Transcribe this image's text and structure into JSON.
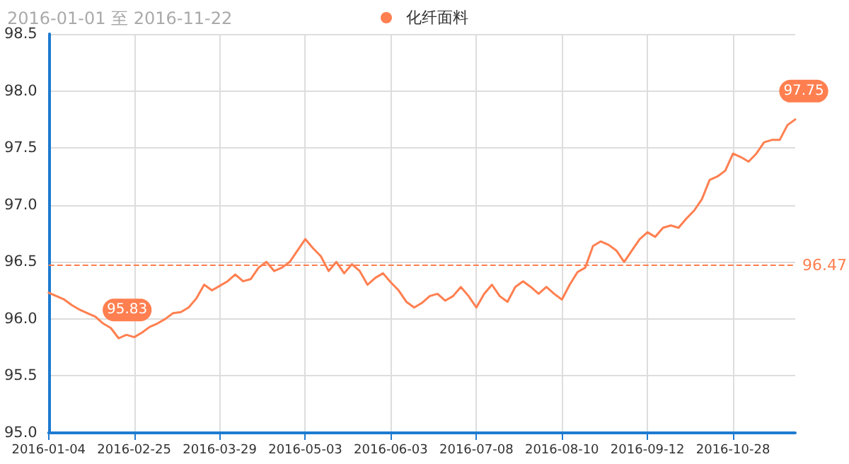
{
  "chart_data": {
    "type": "line",
    "title": "2016-01-01 至 2016-11-22",
    "categories": [
      "2016-01-04",
      null,
      null,
      null,
      null,
      null,
      null,
      null,
      null,
      null,
      null,
      "2016-02-25",
      null,
      null,
      null,
      null,
      null,
      null,
      null,
      null,
      null,
      null,
      "2016-03-29",
      null,
      null,
      null,
      null,
      null,
      null,
      null,
      null,
      null,
      null,
      "2016-05-03",
      null,
      null,
      null,
      null,
      null,
      null,
      null,
      null,
      null,
      null,
      "2016-06-03",
      null,
      null,
      null,
      null,
      null,
      null,
      null,
      null,
      null,
      null,
      "2016-07-08",
      null,
      null,
      null,
      null,
      null,
      null,
      null,
      null,
      null,
      null,
      "2016-08-10",
      null,
      null,
      null,
      null,
      null,
      null,
      null,
      null,
      null,
      null,
      "2016-09-12",
      null,
      null,
      null,
      null,
      null,
      null,
      null,
      null,
      null,
      null,
      "2016-10-28",
      null,
      null,
      null,
      null,
      null,
      null,
      null,
      null
    ],
    "series": [
      {
        "name": "化纤面料",
        "color": "#ff7f50",
        "values": [
          96.23,
          96.2,
          96.17,
          96.12,
          96.08,
          96.05,
          96.02,
          95.96,
          95.92,
          95.83,
          95.86,
          95.84,
          95.88,
          95.93,
          95.96,
          96.0,
          96.05,
          96.06,
          96.1,
          96.18,
          96.3,
          96.25,
          96.29,
          96.33,
          96.39,
          96.33,
          96.35,
          96.45,
          96.5,
          96.42,
          96.45,
          96.5,
          96.6,
          96.7,
          96.62,
          96.55,
          96.42,
          96.5,
          96.4,
          96.48,
          96.42,
          96.3,
          96.36,
          96.4,
          96.32,
          96.25,
          96.15,
          96.1,
          96.14,
          96.2,
          96.22,
          96.16,
          96.2,
          96.28,
          96.2,
          96.1,
          96.22,
          96.3,
          96.2,
          96.15,
          96.28,
          96.33,
          96.28,
          96.22,
          96.28,
          96.22,
          96.17,
          96.3,
          96.41,
          96.45,
          96.64,
          96.68,
          96.65,
          96.6,
          96.5,
          96.6,
          96.7,
          96.76,
          96.72,
          96.8,
          96.82,
          96.8,
          96.88,
          96.95,
          97.05,
          97.22,
          97.25,
          97.3,
          97.45,
          97.42,
          97.38,
          97.45,
          97.55,
          97.57,
          97.57,
          97.7,
          97.75
        ],
        "value_labels": [
          null,
          null,
          null,
          null,
          null,
          null,
          null,
          null,
          null,
          "95.83",
          null,
          null,
          null,
          null,
          null,
          null,
          null,
          null,
          null,
          null,
          null,
          null,
          null,
          null,
          null,
          null,
          null,
          null,
          null,
          null,
          null,
          null,
          null,
          null,
          null,
          null,
          null,
          null,
          null,
          null,
          null,
          null,
          null,
          null,
          null,
          null,
          null,
          null,
          null,
          null,
          null,
          null,
          null,
          null,
          null,
          null,
          null,
          null,
          null,
          null,
          null,
          null,
          null,
          null,
          null,
          null,
          null,
          null,
          null,
          null,
          null,
          null,
          null,
          null,
          null,
          null,
          null,
          null,
          null,
          null,
          null,
          null,
          null,
          null,
          null,
          null,
          null,
          null,
          null,
          null,
          null,
          null,
          null,
          null,
          null,
          null,
          "97.75"
        ]
      }
    ],
    "ylim": [
      95,
      98.5
    ],
    "yticks": [
      {
        "value": 95,
        "label": "95.0"
      },
      {
        "value": 95.5,
        "label": "95.5"
      },
      {
        "value": 96,
        "label": "96.0"
      },
      {
        "value": 96.5,
        "label": "96.5"
      },
      {
        "value": 97,
        "label": "97.0"
      },
      {
        "value": 97.5,
        "label": "97.5"
      },
      {
        "value": 98,
        "label": "98.0"
      },
      {
        "value": 98.5,
        "label": "98.5"
      }
    ],
    "ref_lines": [
      {
        "axis": "y",
        "value": 96.47,
        "label": "96.47",
        "color": "#ff7f50",
        "line_style": "dashed"
      }
    ],
    "grid": true,
    "legend": "top",
    "marker": "none",
    "line_style": "solid"
  }
}
